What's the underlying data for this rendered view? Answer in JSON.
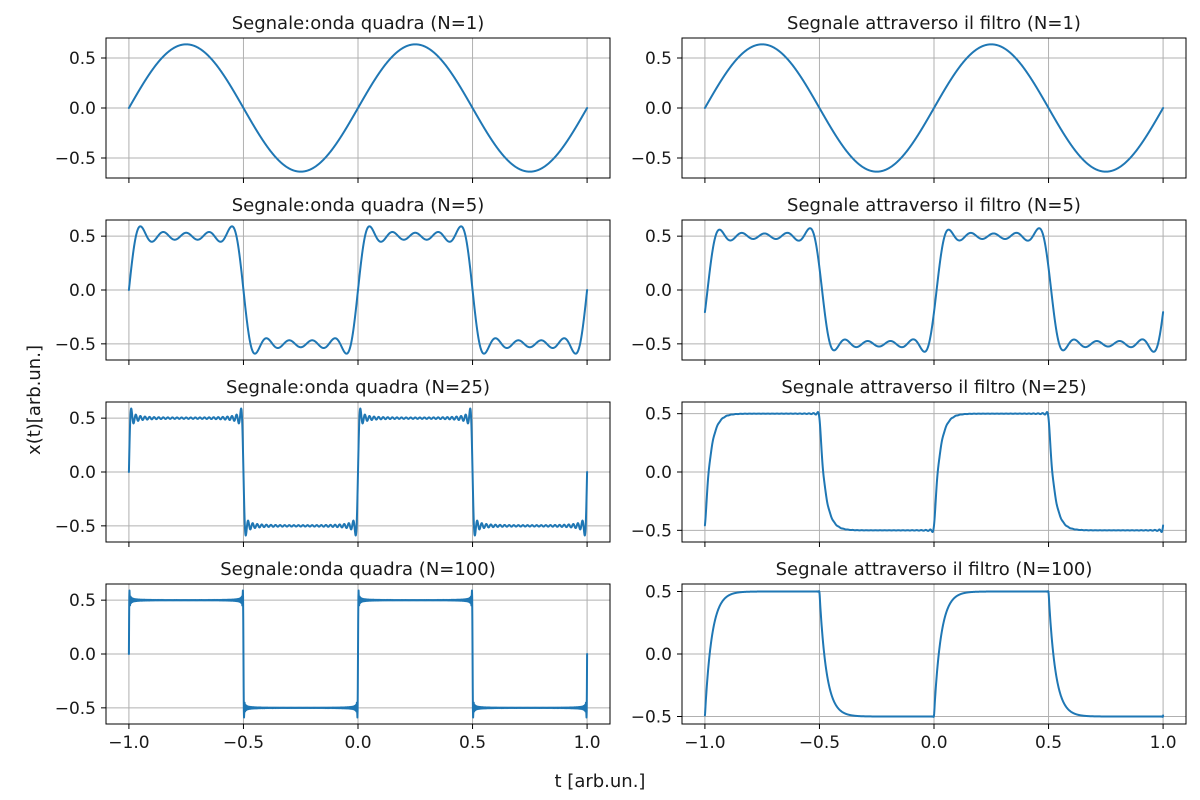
{
  "figure": {
    "xlabel": "t  [arb.un.]",
    "ylabel": "x(t)[arb.un.]",
    "line_color": "#1f77b4",
    "grid_color": "#b0b0b0"
  },
  "chart_data": [
    {
      "type": "line",
      "title": "Segnale:onda quadra (N=1)",
      "signal": "square-wave-fourier",
      "harmonics": 1,
      "filtered": false,
      "xlim": [
        -1.1,
        1.1
      ],
      "ylim": [
        -0.7,
        0.7
      ],
      "xticks": [
        -1.0,
        -0.5,
        0.0,
        0.5,
        1.0
      ],
      "xtick_labels": [
        "−1.0",
        "−0.5",
        "0.0",
        "0.5",
        "1.0"
      ],
      "yticks": [
        0.5,
        0.0,
        -0.5
      ],
      "ytick_labels": [
        "0.5",
        "0.0",
        "−0.5"
      ],
      "x": [
        -1.0,
        -0.75,
        -0.5,
        -0.25,
        0.0,
        0.25,
        0.5,
        0.75,
        1.0
      ],
      "y": [
        0.0,
        0.64,
        0.0,
        -0.64,
        0.0,
        0.64,
        0.0,
        -0.64,
        0.0
      ],
      "grid": true
    },
    {
      "type": "line",
      "title": "Segnale attraverso il filtro (N=1)",
      "signal": "square-wave-fourier",
      "harmonics": 1,
      "filtered": true,
      "xlim": [
        -1.1,
        1.1
      ],
      "ylim": [
        -0.7,
        0.7
      ],
      "xticks": [
        -1.0,
        -0.5,
        0.0,
        0.5,
        1.0
      ],
      "xtick_labels": [
        "−1.0",
        "−0.5",
        "0.0",
        "0.5",
        "1.0"
      ],
      "yticks": [
        0.5,
        0.0,
        -0.5
      ],
      "ytick_labels": [
        "0.5",
        "0.0",
        "−0.5"
      ],
      "x": [
        -1.0,
        -0.73,
        -0.48,
        -0.23,
        0.0,
        0.27,
        0.52,
        0.77,
        1.0
      ],
      "y": [
        -0.06,
        0.64,
        0.0,
        -0.64,
        -0.06,
        0.64,
        0.0,
        -0.64,
        -0.06
      ],
      "grid": true
    },
    {
      "type": "line",
      "title": "Segnale:onda quadra (N=5)",
      "signal": "square-wave-fourier",
      "harmonics": 5,
      "filtered": false,
      "xlim": [
        -1.1,
        1.1
      ],
      "ylim": [
        -0.65,
        0.65
      ],
      "xticks": [
        -1.0,
        -0.5,
        0.0,
        0.5,
        1.0
      ],
      "xtick_labels": [
        "−1.0",
        "−0.5",
        "0.0",
        "0.5",
        "1.0"
      ],
      "yticks": [
        0.5,
        0.0,
        -0.5
      ],
      "ytick_labels": [
        "0.5",
        "0.0",
        "−0.5"
      ],
      "x": [
        -1.0,
        -0.95,
        -0.5,
        0.0,
        0.05,
        0.5,
        1.0
      ],
      "y": [
        0.0,
        0.59,
        0.0,
        0.0,
        0.59,
        0.0,
        0.0
      ],
      "grid": true
    },
    {
      "type": "line",
      "title": "Segnale attraverso il filtro (N=5)",
      "signal": "square-wave-fourier",
      "harmonics": 5,
      "filtered": true,
      "xlim": [
        -1.1,
        1.1
      ],
      "ylim": [
        -0.65,
        0.65
      ],
      "xticks": [
        -1.0,
        -0.5,
        0.0,
        0.5,
        1.0
      ],
      "xtick_labels": [
        "−1.0",
        "−0.5",
        "0.0",
        "0.5",
        "1.0"
      ],
      "yticks": [
        0.5,
        0.0,
        -0.5
      ],
      "ytick_labels": [
        "0.5",
        "0.0",
        "−0.5"
      ],
      "x": [
        -1.0,
        -0.92,
        -0.5,
        0.0,
        0.08,
        0.5,
        1.0
      ],
      "y": [
        -0.17,
        0.58,
        0.0,
        -0.17,
        0.58,
        0.0,
        -0.17
      ],
      "grid": true
    },
    {
      "type": "line",
      "title": "Segnale:onda quadra (N=25)",
      "signal": "square-wave-fourier",
      "harmonics": 25,
      "filtered": false,
      "xlim": [
        -1.1,
        1.1
      ],
      "ylim": [
        -0.65,
        0.65
      ],
      "xticks": [
        -1.0,
        -0.5,
        0.0,
        0.5,
        1.0
      ],
      "xtick_labels": [
        "−1.0",
        "−0.5",
        "0.0",
        "0.5",
        "1.0"
      ],
      "yticks": [
        0.5,
        0.0,
        -0.5
      ],
      "ytick_labels": [
        "0.5",
        "0.0",
        "−0.5"
      ],
      "x": [
        -1.0,
        -0.98,
        -0.5,
        -0.48,
        0.0,
        0.02,
        0.5,
        0.52,
        1.0
      ],
      "y": [
        0.0,
        0.59,
        0.0,
        -0.59,
        0.0,
        0.59,
        0.0,
        -0.59,
        0.0
      ],
      "grid": true
    },
    {
      "type": "line",
      "title": "Segnale attraverso il filtro (N=25)",
      "signal": "square-wave-fourier",
      "harmonics": 25,
      "filtered": true,
      "xlim": [
        -1.1,
        1.1
      ],
      "ylim": [
        -0.6,
        0.6
      ],
      "xticks": [
        -1.0,
        -0.5,
        0.0,
        0.5,
        1.0
      ],
      "xtick_labels": [
        "−1.0",
        "−0.5",
        "0.0",
        "0.5",
        "1.0"
      ],
      "yticks": [
        0.5,
        0.0,
        -0.5
      ],
      "ytick_labels": [
        "0.5",
        "0.0",
        "−0.5"
      ],
      "x": [
        -1.0,
        -0.9,
        -0.5,
        -0.4,
        0.0,
        0.1,
        0.5,
        0.6,
        1.0
      ],
      "y": [
        -0.38,
        0.5,
        0.53,
        -0.5,
        -0.52,
        0.5,
        0.53,
        -0.5,
        -0.38
      ],
      "grid": true
    },
    {
      "type": "line",
      "title": "Segnale:onda quadra (N=100)",
      "signal": "square-wave-fourier",
      "harmonics": 100,
      "filtered": false,
      "xlim": [
        -1.1,
        1.1
      ],
      "ylim": [
        -0.65,
        0.65
      ],
      "xticks": [
        -1.0,
        -0.5,
        0.0,
        0.5,
        1.0
      ],
      "xtick_labels": [
        "−1.0",
        "−0.5",
        "0.0",
        "0.5",
        "1.0"
      ],
      "yticks": [
        0.5,
        0.0,
        -0.5
      ],
      "ytick_labels": [
        "0.5",
        "0.0",
        "−0.5"
      ],
      "x": [
        -1.0,
        -0.99,
        -0.5,
        -0.49,
        0.0,
        0.01,
        0.5,
        0.51,
        1.0
      ],
      "y": [
        0.0,
        0.59,
        0.0,
        -0.59,
        0.0,
        0.59,
        0.0,
        -0.59,
        0.0
      ],
      "grid": true
    },
    {
      "type": "line",
      "title": "Segnale attraverso il filtro (N=100)",
      "signal": "square-wave-fourier",
      "harmonics": 100,
      "filtered": true,
      "xlim": [
        -1.1,
        1.1
      ],
      "ylim": [
        -0.56,
        0.56
      ],
      "xticks": [
        -1.0,
        -0.5,
        0.0,
        0.5,
        1.0
      ],
      "xtick_labels": [
        "−1.0",
        "−0.5",
        "0.0",
        "0.5",
        "1.0"
      ],
      "yticks": [
        0.5,
        0.0,
        -0.5
      ],
      "ytick_labels": [
        "0.5",
        "0.0",
        "−0.5"
      ],
      "x": [
        -1.0,
        -0.9,
        -0.5,
        -0.4,
        0.0,
        0.1,
        0.5,
        0.6,
        1.0
      ],
      "y": [
        -0.47,
        0.5,
        0.5,
        -0.5,
        -0.5,
        0.5,
        0.5,
        -0.5,
        -0.48
      ],
      "grid": true
    }
  ]
}
